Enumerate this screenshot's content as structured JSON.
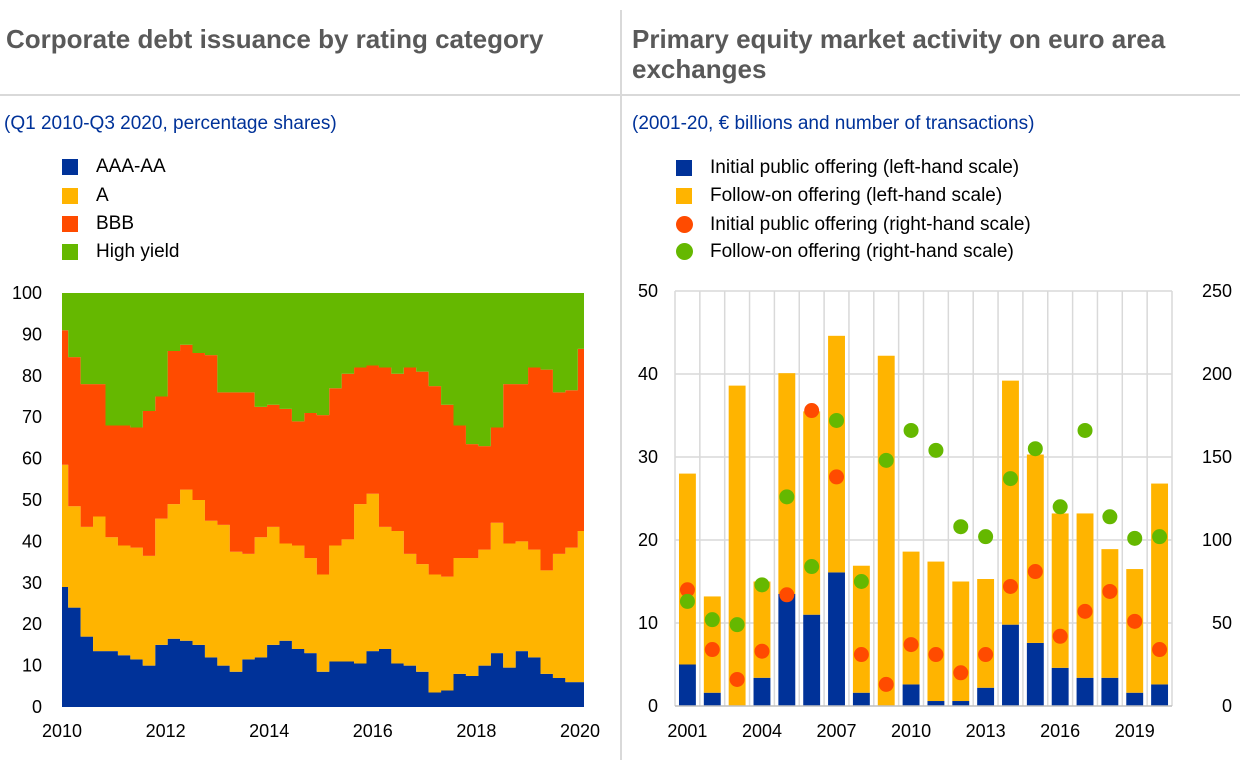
{
  "left": {
    "title": "Corporate debt issuance by rating category",
    "subtitle": "(Q1 2010-Q3 2020, percentage shares)",
    "legend": [
      {
        "label": "AAA-AA",
        "color": "#003299"
      },
      {
        "label": "A",
        "color": "#ffb400"
      },
      {
        "label": "BBB",
        "color": "#ff4b00"
      },
      {
        "label": "High yield",
        "color": "#65b800"
      }
    ]
  },
  "right": {
    "title": "Primary equity market activity on euro area exchanges",
    "subtitle": "(2001-20, € billions and number of transactions)",
    "legend": [
      {
        "label": "Initial public offering  (left-hand scale)",
        "color": "#003299",
        "shape": "square"
      },
      {
        "label": "Follow-on offering  (left-hand scale)",
        "color": "#ffb400",
        "shape": "square"
      },
      {
        "label": "Initial public offering  (right-hand scale)",
        "color": "#ff4b00",
        "shape": "circle"
      },
      {
        "label": "Follow-on offering  (right-hand scale)",
        "color": "#65b800",
        "shape": "circle"
      }
    ]
  },
  "chart_data": [
    {
      "type": "area",
      "stacked": true,
      "title": "Corporate debt issuance by rating category",
      "subtitle": "(Q1 2010-Q3 2020, percentage shares)",
      "ylim": [
        0,
        100
      ],
      "yticks": [
        "0",
        "10",
        "20",
        "30",
        "40",
        "50",
        "60",
        "70",
        "80",
        "90",
        "100"
      ],
      "xticks": [
        "2010",
        "2012",
        "2014",
        "2016",
        "2018",
        "2020"
      ],
      "x": [
        "2010Q1",
        "2010Q2",
        "2010Q3",
        "2010Q4",
        "2011Q1",
        "2011Q2",
        "2011Q3",
        "2011Q4",
        "2012Q1",
        "2012Q2",
        "2012Q3",
        "2012Q4",
        "2013Q1",
        "2013Q2",
        "2013Q3",
        "2013Q4",
        "2014Q1",
        "2014Q2",
        "2014Q3",
        "2014Q4",
        "2015Q1",
        "2015Q2",
        "2015Q3",
        "2015Q4",
        "2016Q1",
        "2016Q2",
        "2016Q3",
        "2016Q4",
        "2017Q1",
        "2017Q2",
        "2017Q3",
        "2017Q4",
        "2018Q1",
        "2018Q2",
        "2018Q3",
        "2018Q4",
        "2019Q1",
        "2019Q2",
        "2019Q3",
        "2019Q4",
        "2020Q1",
        "2020Q2",
        "2020Q3"
      ],
      "grid": false,
      "legend_position": "top-left",
      "series": [
        {
          "name": "AAA-AA",
          "color": "#003299",
          "values": [
            29,
            24,
            17,
            13.5,
            13.5,
            12.5,
            11.5,
            10,
            15,
            16.5,
            16,
            15,
            12,
            10,
            8.5,
            11.5,
            12,
            15,
            16,
            14,
            13,
            8.5,
            11,
            11,
            10.5,
            13.5,
            14,
            10.5,
            10,
            8.5,
            3.5,
            4,
            8,
            7.5,
            10,
            13,
            9.5,
            13.5,
            12,
            8,
            7,
            6,
            6
          ]
        },
        {
          "name": "A",
          "color": "#ffb400",
          "values": [
            29.5,
            24.5,
            26.5,
            32.5,
            27.5,
            26.5,
            27,
            26.5,
            30.5,
            32.5,
            36.5,
            35,
            33,
            34,
            29,
            25.5,
            29,
            28.5,
            23.5,
            25,
            23,
            23.5,
            28,
            29.5,
            38.5,
            38,
            29.5,
            32,
            27,
            26,
            28.5,
            27.5,
            28,
            28.5,
            28,
            31.5,
            30,
            26.5,
            26,
            25,
            30,
            32.5,
            36.5
          ]
        },
        {
          "name": "BBB",
          "color": "#ff4b00",
          "values": [
            32.5,
            36,
            34.5,
            32,
            27,
            29,
            29,
            35,
            29.5,
            37,
            35,
            35.5,
            40,
            32,
            38.5,
            39,
            31.5,
            29.5,
            32.5,
            30,
            35,
            38.5,
            38,
            40,
            33,
            31,
            38.5,
            38,
            45,
            46.5,
            45.5,
            41.5,
            32,
            27.5,
            25,
            23,
            38.5,
            38,
            44,
            48.5,
            39,
            38,
            44
          ]
        },
        {
          "name": "High yield",
          "color": "#65b800",
          "values": [
            9,
            15.5,
            22,
            22,
            32,
            32,
            32.5,
            28.5,
            25,
            14,
            12.5,
            14.5,
            15,
            24,
            24,
            24,
            27.5,
            27,
            28,
            31,
            29,
            29.5,
            23,
            19.5,
            18,
            17.5,
            18,
            19.5,
            18,
            19,
            22.5,
            27,
            32,
            36.5,
            37,
            32.5,
            22,
            22,
            18,
            18.5,
            24,
            23.5,
            13.5
          ]
        }
      ]
    },
    {
      "type": "bar",
      "stacked": true,
      "title": "Primary equity market activity on euro area exchanges",
      "subtitle": "(2001-20, € billions and number of transactions)",
      "categories": [
        "2001",
        "2002",
        "2003",
        "2004",
        "2005",
        "2006",
        "2007",
        "2008",
        "2009",
        "2010",
        "2011",
        "2012",
        "2013",
        "2014",
        "2015",
        "2016",
        "2017",
        "2018",
        "2019",
        "2020"
      ],
      "xticks": [
        "2001",
        "2004",
        "2007",
        "2010",
        "2013",
        "2016",
        "2019"
      ],
      "ylim": [
        0,
        50
      ],
      "yticks": [
        "0",
        "10",
        "20",
        "30",
        "40",
        "50"
      ],
      "y2lim": [
        0,
        250
      ],
      "y2ticks": [
        "0",
        "50",
        "100",
        "150",
        "200",
        "250"
      ],
      "grid": true,
      "legend_position": "top-left",
      "series": [
        {
          "name": "Initial public offering  (left-hand scale)",
          "axis": "left",
          "kind": "bar",
          "color": "#003299",
          "values": [
            5,
            1.6,
            0,
            3.4,
            13.5,
            11,
            16.1,
            1.6,
            0,
            2.6,
            0.6,
            0.6,
            2.2,
            9.8,
            7.6,
            4.6,
            3.4,
            3.4,
            1.6,
            2.6
          ]
        },
        {
          "name": "Follow-on offering  (left-hand scale)",
          "axis": "left",
          "kind": "bar",
          "color": "#ffb400",
          "values": [
            23,
            11.6,
            38.6,
            11.6,
            26.6,
            24.5,
            28.5,
            15.3,
            42.2,
            16,
            16.8,
            14.4,
            13.1,
            29.4,
            22.7,
            18.6,
            19.8,
            15.5,
            14.9,
            24.2
          ]
        },
        {
          "name": "Initial public offering  (right-hand scale)",
          "axis": "right",
          "kind": "scatter",
          "color": "#ff4b00",
          "values": [
            70,
            34,
            16,
            33,
            67,
            178,
            138,
            31,
            13,
            37,
            31,
            20,
            31,
            72,
            81,
            42,
            57,
            69,
            51,
            34
          ]
        },
        {
          "name": "Follow-on offering  (right-hand scale)",
          "axis": "right",
          "kind": "scatter",
          "color": "#65b800",
          "values": [
            63,
            52,
            49,
            73,
            126,
            84,
            172,
            75,
            148,
            166,
            154,
            108,
            102,
            137,
            155,
            120,
            166,
            114,
            101,
            102
          ]
        }
      ]
    }
  ]
}
